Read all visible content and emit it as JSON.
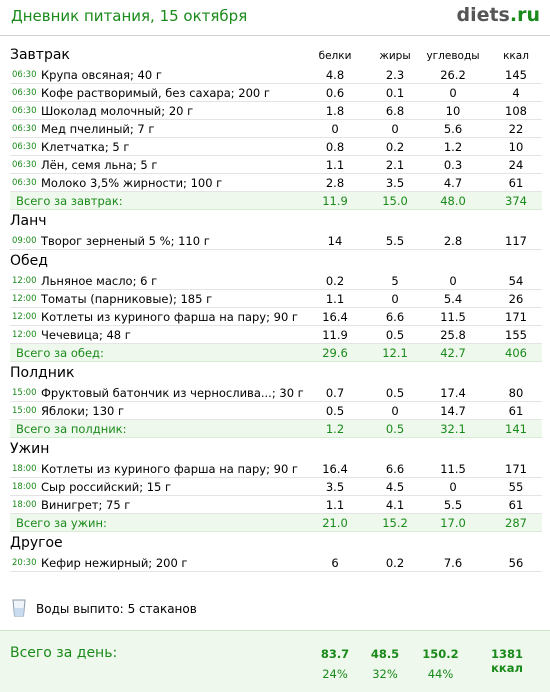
{
  "header": {
    "title": "Дневник питания, 15 октября",
    "logo_main": "diets",
    "logo_tld": ".ru"
  },
  "columns": [
    "белки",
    "жиры",
    "углеводы",
    "ккал"
  ],
  "sections": [
    {
      "name": "Завтрак",
      "show_columns": true,
      "items": [
        {
          "time": "06:30",
          "name": "Крупа овсяная; 40 г",
          "v": [
            "4.8",
            "2.3",
            "26.2",
            "145"
          ]
        },
        {
          "time": "06:30",
          "name": "Кофе растворимый, без сахара; 200 г",
          "v": [
            "0.6",
            "0.1",
            "0",
            "4"
          ]
        },
        {
          "time": "06:30",
          "name": "Шоколад молочный; 20 г",
          "v": [
            "1.8",
            "6.8",
            "10",
            "108"
          ]
        },
        {
          "time": "06:30",
          "name": "Мед пчелиный; 7 г",
          "v": [
            "0",
            "0",
            "5.6",
            "22"
          ]
        },
        {
          "time": "06:30",
          "name": "Клетчатка; 5 г",
          "v": [
            "0.8",
            "0.2",
            "1.2",
            "10"
          ]
        },
        {
          "time": "06:30",
          "name": "Лён, семя льна; 5 г",
          "v": [
            "1.1",
            "2.1",
            "0.3",
            "24"
          ]
        },
        {
          "time": "06:30",
          "name": "Молоко 3,5% жирности; 100 г",
          "v": [
            "2.8",
            "3.5",
            "4.7",
            "61"
          ]
        }
      ],
      "total": {
        "label": "Всего за завтрак:",
        "v": [
          "11.9",
          "15.0",
          "48.0",
          "374"
        ]
      }
    },
    {
      "name": "Ланч",
      "show_columns": false,
      "items": [
        {
          "time": "09:00",
          "name": "Творог зерненый 5 %; 110 г",
          "v": [
            "14",
            "5.5",
            "2.8",
            "117"
          ]
        }
      ],
      "total": null
    },
    {
      "name": "Обед",
      "show_columns": false,
      "items": [
        {
          "time": "12:00",
          "name": "Льняное масло; 6 г",
          "v": [
            "0.2",
            "5",
            "0",
            "54"
          ]
        },
        {
          "time": "12:00",
          "name": "Томаты (парниковые); 185 г",
          "v": [
            "1.1",
            "0",
            "5.4",
            "26"
          ]
        },
        {
          "time": "12:00",
          "name": "Котлеты из куриного фарша на пару; 90 г",
          "v": [
            "16.4",
            "6.6",
            "11.5",
            "171"
          ]
        },
        {
          "time": "12:00",
          "name": "Чечевица; 48 г",
          "v": [
            "11.9",
            "0.5",
            "25.8",
            "155"
          ]
        }
      ],
      "total": {
        "label": "Всего за обед:",
        "v": [
          "29.6",
          "12.1",
          "42.7",
          "406"
        ]
      }
    },
    {
      "name": "Полдник",
      "show_columns": false,
      "items": [
        {
          "time": "15:00",
          "name": "Фруктовый батончик из чернослива...; 30 г",
          "v": [
            "0.7",
            "0.5",
            "17.4",
            "80"
          ]
        },
        {
          "time": "15:00",
          "name": "Яблоки; 130 г",
          "v": [
            "0.5",
            "0",
            "14.7",
            "61"
          ]
        }
      ],
      "total": {
        "label": "Всего за полдник:",
        "v": [
          "1.2",
          "0.5",
          "32.1",
          "141"
        ]
      }
    },
    {
      "name": "Ужин",
      "show_columns": false,
      "items": [
        {
          "time": "18:00",
          "name": "Котлеты из куриного фарша на пару; 90 г",
          "v": [
            "16.4",
            "6.6",
            "11.5",
            "171"
          ]
        },
        {
          "time": "18:00",
          "name": "Сыр российский; 15 г",
          "v": [
            "3.5",
            "4.5",
            "0",
            "55"
          ]
        },
        {
          "time": "18:00",
          "name": "Винигрет; 75 г",
          "v": [
            "1.1",
            "4.1",
            "5.5",
            "61"
          ]
        }
      ],
      "total": {
        "label": "Всего за ужин:",
        "v": [
          "21.0",
          "15.2",
          "17.0",
          "287"
        ]
      }
    },
    {
      "name": "Другое",
      "show_columns": false,
      "items": [
        {
          "time": "20:30",
          "name": "Кефир нежирный; 200 г",
          "v": [
            "6",
            "0.2",
            "7.6",
            "56"
          ]
        }
      ],
      "total": null
    }
  ],
  "water": {
    "label": "Воды выпито:",
    "value": "5 стаканов",
    "icon": "glass-icon"
  },
  "day_total": {
    "label": "Всего за день:",
    "protein": "83.7",
    "fat": "48.5",
    "carbs": "150.2",
    "kcal": "1381 ккал",
    "protein_pct": "24%",
    "fat_pct": "32%",
    "carbs_pct": "44%"
  },
  "colors": {
    "accent": "#1a8a1a",
    "total_bg": "#eef8ec"
  }
}
